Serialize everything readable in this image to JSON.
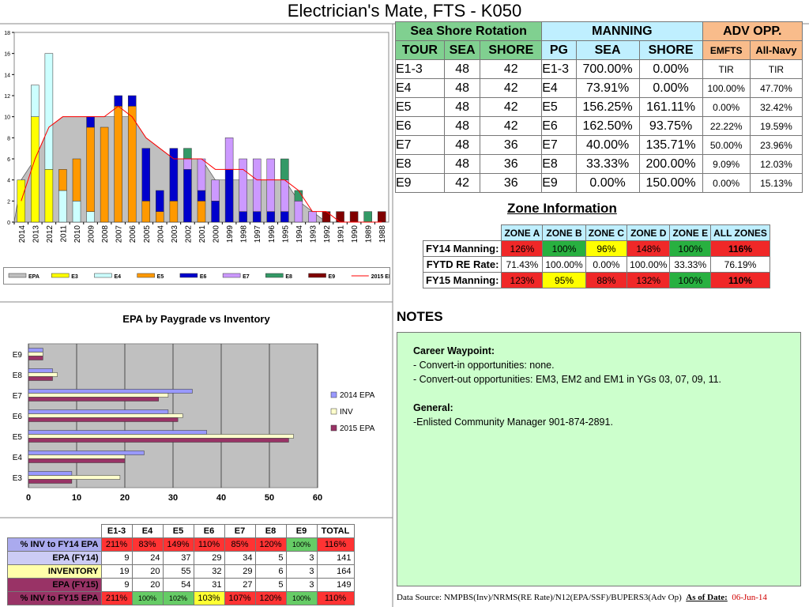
{
  "title": "Electrician's Mate, FTS - K050",
  "chart_data": [
    {
      "type": "bar",
      "categories": [
        "2014",
        "2013",
        "2012",
        "2011",
        "2010",
        "2009",
        "2008",
        "2007",
        "2006",
        "2005",
        "2004",
        "2003",
        "2002",
        "2001",
        "2000",
        "1999",
        "1998",
        "1997",
        "1996",
        "1995",
        "1994",
        "1993",
        "1992",
        "1991",
        "1990",
        "1989",
        "1988"
      ],
      "ylim": [
        0,
        18
      ],
      "yticks": [
        0,
        2,
        4,
        6,
        8,
        10,
        12,
        14,
        16,
        18
      ],
      "legend": [
        "EPA",
        "E3",
        "E4",
        "E5",
        "E6",
        "E7",
        "E8",
        "E9",
        "2015 EPA"
      ],
      "colors": {
        "EPA": "#c0c0c0",
        "E3": "#ffff00",
        "E4": "#ccffff",
        "E5": "#ff9900",
        "E6": "#0000cc",
        "E7": "#cc99ff",
        "E8": "#339966",
        "E9": "#800000",
        "2015 EPA": "#ff0000"
      },
      "series": [
        {
          "name": "EPA",
          "values": [
            4,
            6,
            9,
            10,
            10,
            10,
            10,
            10,
            10,
            8,
            7,
            6,
            6,
            6,
            4,
            4,
            4,
            4,
            4,
            4,
            2,
            1,
            0,
            0,
            0,
            0,
            0
          ]
        },
        {
          "name": "E3",
          "values": [
            4,
            10,
            5,
            0,
            0,
            0,
            0,
            0,
            0,
            0,
            0,
            0,
            0,
            0,
            0,
            0,
            0,
            0,
            0,
            0,
            0,
            0,
            0,
            0,
            0,
            0,
            0
          ]
        },
        {
          "name": "E4",
          "values": [
            0,
            3,
            11,
            3,
            2,
            1,
            0,
            0,
            0,
            0,
            0,
            0,
            0,
            0,
            0,
            0,
            0,
            0,
            0,
            0,
            0,
            0,
            0,
            0,
            0,
            0,
            0
          ]
        },
        {
          "name": "E5",
          "values": [
            0,
            0,
            0,
            2,
            4,
            8,
            9,
            11,
            11,
            2,
            1,
            2,
            0,
            2,
            0,
            0,
            0,
            0,
            0,
            0,
            0,
            0,
            0,
            0,
            0,
            0,
            0
          ]
        },
        {
          "name": "E6",
          "values": [
            0,
            0,
            0,
            0,
            0,
            1,
            0,
            1,
            1,
            5,
            2,
            5,
            5,
            1,
            2,
            5,
            1,
            1,
            1,
            1,
            0,
            0,
            0,
            0,
            0,
            0,
            0
          ]
        },
        {
          "name": "E7",
          "values": [
            0,
            0,
            0,
            0,
            0,
            0,
            0,
            0,
            0,
            0,
            0,
            0,
            1,
            3,
            2,
            3,
            5,
            5,
            5,
            3,
            2,
            1,
            0,
            0,
            0,
            0,
            0
          ]
        },
        {
          "name": "E8",
          "values": [
            0,
            0,
            0,
            0,
            0,
            0,
            0,
            0,
            0,
            0,
            0,
            0,
            1,
            0,
            0,
            0,
            0,
            0,
            0,
            2,
            1,
            0,
            0,
            0,
            0,
            1,
            0
          ]
        },
        {
          "name": "E9",
          "values": [
            0,
            0,
            0,
            0,
            0,
            0,
            0,
            0,
            0,
            0,
            0,
            0,
            0,
            0,
            0,
            0,
            0,
            0,
            0,
            0,
            0,
            0,
            1,
            1,
            1,
            0,
            1
          ]
        },
        {
          "name": "2015 EPA",
          "values": [
            2,
            6,
            9,
            10,
            10,
            10,
            10,
            11,
            10,
            8,
            7,
            6,
            6,
            6,
            5,
            5,
            5,
            4,
            4,
            4,
            3,
            1,
            1,
            0,
            0,
            0,
            0
          ]
        }
      ]
    },
    {
      "type": "bar",
      "title": "EPA by Paygrade vs Inventory",
      "orientation": "horizontal",
      "categories": [
        "E9",
        "E8",
        "E7",
        "E6",
        "E5",
        "E4",
        "E3"
      ],
      "xlim": [
        0,
        60
      ],
      "xticks": [
        0,
        10,
        20,
        30,
        40,
        50,
        60
      ],
      "series": [
        {
          "name": "2014 EPA",
          "color": "#9999ff",
          "values": [
            3,
            5,
            34,
            29,
            37,
            24,
            9
          ]
        },
        {
          "name": "INV",
          "color": "#ffffcc",
          "values": [
            3,
            6,
            29,
            32,
            55,
            20,
            19
          ]
        },
        {
          "name": "2015 EPA",
          "color": "#993366",
          "values": [
            3,
            5,
            27,
            31,
            54,
            20,
            9
          ]
        }
      ]
    }
  ],
  "manning": {
    "group_headers": [
      "Sea Shore Rotation",
      "MANNING",
      "ADV OPP."
    ],
    "col_headers": [
      "TOUR",
      "SEA",
      "SHORE",
      "PG",
      "SEA",
      "SHORE",
      "EMFTS",
      "All-Navy"
    ],
    "rows": [
      [
        "E1-3",
        "48",
        "42",
        "E1-3",
        "700.00%",
        "0.00%",
        "TIR",
        "TIR"
      ],
      [
        "E4",
        "48",
        "42",
        "E4",
        "73.91%",
        "0.00%",
        "100.00%",
        "47.70%"
      ],
      [
        "E5",
        "48",
        "42",
        "E5",
        "156.25%",
        "161.11%",
        "0.00%",
        "32.42%"
      ],
      [
        "E6",
        "48",
        "42",
        "E6",
        "162.50%",
        "93.75%",
        "22.22%",
        "19.59%"
      ],
      [
        "E7",
        "48",
        "36",
        "E7",
        "40.00%",
        "135.71%",
        "50.00%",
        "23.96%"
      ],
      [
        "E8",
        "48",
        "36",
        "E8",
        "33.33%",
        "200.00%",
        "9.09%",
        "12.03%"
      ],
      [
        "E9",
        "42",
        "36",
        "E9",
        "0.00%",
        "150.00%",
        "0.00%",
        "15.13%"
      ]
    ]
  },
  "zone": {
    "title": "Zone Information",
    "headers": [
      "ZONE A",
      "ZONE B",
      "ZONE C",
      "ZONE D",
      "ZONE E",
      "ALL ZONES"
    ],
    "rows": [
      {
        "label": "FY14 Manning:",
        "values": [
          "126%",
          "100%",
          "96%",
          "148%",
          "100%",
          "116%"
        ],
        "colors": [
          "red",
          "grn",
          "yel",
          "red",
          "grn",
          "red"
        ]
      },
      {
        "label": "FYTD RE Rate:",
        "values": [
          "71.43%",
          "100.00%",
          "0.00%",
          "100.00%",
          "33.33%",
          "76.19%"
        ],
        "colors": [
          "",
          "",
          "",
          "",
          "",
          ""
        ]
      },
      {
        "label": "FY15 Manning:",
        "values": [
          "123%",
          "95%",
          "88%",
          "132%",
          "100%",
          "110%"
        ],
        "colors": [
          "red",
          "yel",
          "red",
          "red",
          "grn",
          "red"
        ]
      }
    ]
  },
  "notes": {
    "title": "NOTES",
    "lines": [
      "Career Waypoint:",
      "- Convert-in opportunities: none.",
      "- Convert-out opportunities:  EM3, EM2 and EM1 in YGs 03, 07, 09, 11.",
      "",
      "General:",
      "-Enlisted Community Manager 901-874-2891."
    ]
  },
  "datasource": {
    "text": "Data Source: NMPBS(Inv)/NRMS(RE Rate)/N12(EPA/SSF)/BUPERS3(Adv Op)",
    "asof_label": "As of Date:",
    "date": "06-Jun-14"
  },
  "inv_table": {
    "headers": [
      "E1-3",
      "E4",
      "E5",
      "E6",
      "E7",
      "E8",
      "E9",
      "TOTAL"
    ],
    "rows": [
      {
        "label": "% INV to FY14 EPA",
        "values": [
          "211%",
          "83%",
          "149%",
          "110%",
          "85%",
          "120%",
          "100%",
          "116%"
        ],
        "colors": [
          "cred",
          "cred",
          "cred",
          "cred",
          "cred",
          "cred",
          "cgrn",
          "cred"
        ]
      },
      {
        "label": "EPA (FY14)",
        "values": [
          "9",
          "24",
          "37",
          "29",
          "34",
          "5",
          "3",
          "141"
        ]
      },
      {
        "label": "INVENTORY",
        "values": [
          "19",
          "20",
          "55",
          "32",
          "29",
          "6",
          "3",
          "164"
        ]
      },
      {
        "label": "EPA (FY15)",
        "values": [
          "9",
          "20",
          "54",
          "31",
          "27",
          "5",
          "3",
          "149"
        ]
      },
      {
        "label": "% INV to FY15 EPA",
        "values": [
          "211%",
          "100%",
          "102%",
          "103%",
          "107%",
          "120%",
          "100%",
          "110%"
        ],
        "colors": [
          "cred",
          "cgrn",
          "cgrn",
          "cyel",
          "cred",
          "cred",
          "cgrn",
          "cred"
        ]
      }
    ]
  }
}
